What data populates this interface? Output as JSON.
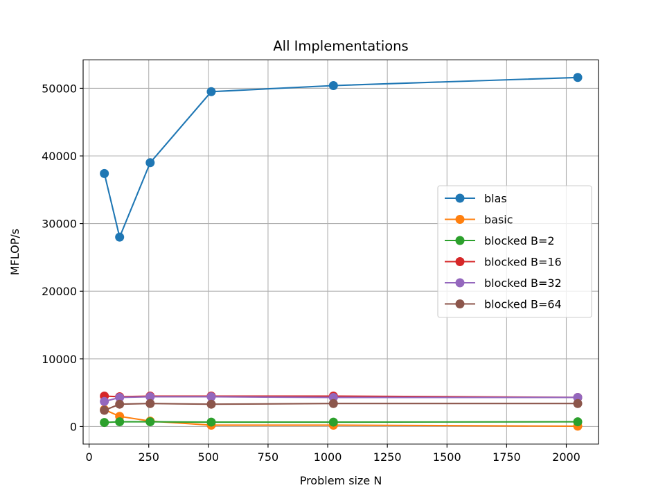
{
  "chart_data": {
    "type": "line",
    "title": "All Implementations",
    "xlabel": "Problem size N",
    "ylabel": "MFLOP/s",
    "xlim": [
      -25,
      2135
    ],
    "ylim": [
      -2600,
      54200
    ],
    "xticks": [
      0,
      250,
      500,
      750,
      1000,
      1250,
      1500,
      1750,
      2000
    ],
    "yticks": [
      0,
      10000,
      20000,
      30000,
      40000,
      50000
    ],
    "grid": true,
    "legend_position": "center-right",
    "x": [
      64,
      128,
      256,
      512,
      1024,
      2048
    ],
    "series": [
      {
        "name": "blas",
        "color": "#1f77b4",
        "values": [
          37400,
          28000,
          39000,
          49500,
          50400,
          51600
        ]
      },
      {
        "name": "basic",
        "color": "#ff7f0e",
        "values": [
          2500,
          1500,
          800,
          200,
          200,
          50
        ]
      },
      {
        "name": "blocked B=2",
        "color": "#2ca02c",
        "values": [
          600,
          700,
          700,
          650,
          650,
          700
        ]
      },
      {
        "name": "blocked B=16",
        "color": "#d62728",
        "values": [
          4500,
          4400,
          4500,
          4500,
          4500,
          4300
        ]
      },
      {
        "name": "blocked B=32",
        "color": "#9467bd",
        "values": [
          3700,
          4300,
          4400,
          4400,
          4300,
          4300
        ]
      },
      {
        "name": "blocked B=64",
        "color": "#8c564b",
        "values": [
          2400,
          3300,
          3400,
          3300,
          3400,
          3400
        ]
      }
    ]
  }
}
